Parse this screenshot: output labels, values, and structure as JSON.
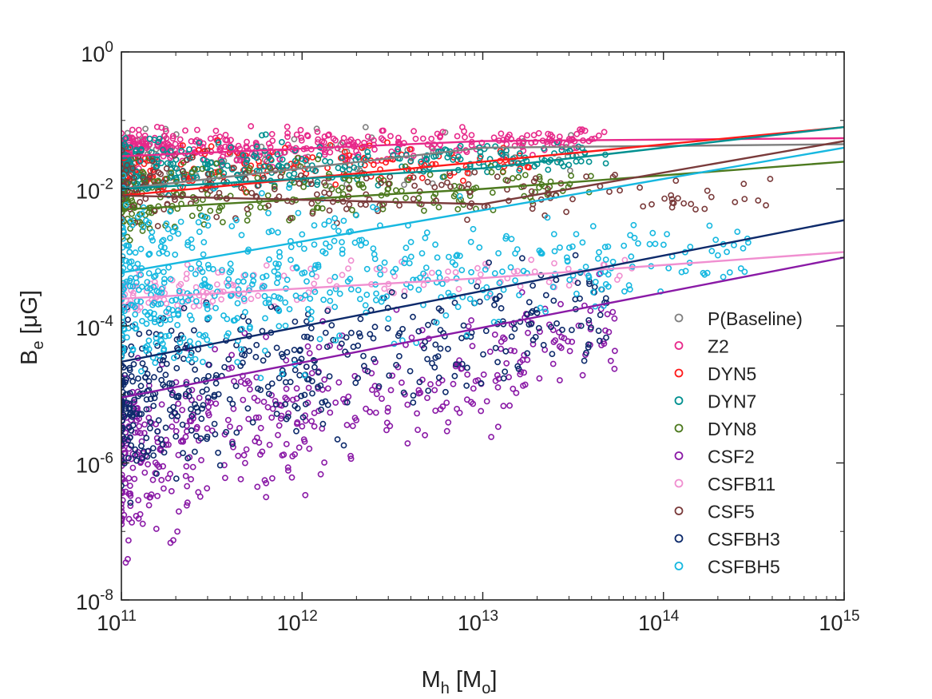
{
  "chart_data": {
    "type": "scatter",
    "title": "",
    "xlabel": {
      "main": "M",
      "sub": "h",
      "unit_open": " [M",
      "unit_sub": "o",
      "unit_close": "]"
    },
    "ylabel": {
      "main": "B",
      "sub": "e",
      "unit": " [μG]"
    },
    "x_scale": "log",
    "y_scale": "log",
    "xlim": [
      100000000000.0,
      1000000000000000.0
    ],
    "ylim": [
      1e-08,
      1
    ],
    "x_ticks": [
      {
        "value": 100000000000.0,
        "base": "10",
        "exp": "11"
      },
      {
        "value": 1000000000000.0,
        "base": "10",
        "exp": "12"
      },
      {
        "value": 10000000000000.0,
        "base": "10",
        "exp": "13"
      },
      {
        "value": 100000000000000.0,
        "base": "10",
        "exp": "14"
      },
      {
        "value": 1000000000000000.0,
        "base": "10",
        "exp": "15"
      }
    ],
    "y_ticks": [
      {
        "value": 1e-08,
        "base": "10",
        "exp": "-8"
      },
      {
        "value": 1e-06,
        "base": "10",
        "exp": "-6"
      },
      {
        "value": 0.0001,
        "base": "10",
        "exp": "-4"
      },
      {
        "value": 0.01,
        "base": "10",
        "exp": "-2"
      },
      {
        "value": 1,
        "base": "10",
        "exp": "0"
      }
    ],
    "grid": false,
    "legend_position": "bottom-right",
    "marker": "open-circle",
    "series": [
      {
        "name": "P(Baseline)",
        "color": "#808080",
        "cloud": {
          "xmin": 100000000000.0,
          "xmax": 40000000000000.0,
          "y_lo": [
            0.005,
            0.01
          ],
          "y_hi": [
            0.13,
            0.1
          ],
          "count": 110
        },
        "fit": {
          "x": [
            100000000000.0,
            10000000000000.0,
            1000000000000000.0
          ],
          "y": [
            0.01,
            0.04,
            0.045
          ]
        }
      },
      {
        "name": "Z2",
        "color": "#e7298a",
        "cloud": {
          "xmin": 100000000000.0,
          "xmax": 50000000000000.0,
          "y_lo": [
            0.015,
            0.03
          ],
          "y_hi": [
            0.1,
            0.09
          ],
          "count": 360
        },
        "fit": {
          "x": [
            100000000000.0,
            10000000000000.0,
            1000000000000000.0
          ],
          "y": [
            0.03,
            0.05,
            0.055
          ]
        }
      },
      {
        "name": "DYN5",
        "color": "#ff1a1a",
        "cloud": {
          "xmin": 100000000000.0,
          "xmax": 20000000000000.0,
          "y_lo": [
            0.005,
            0.012
          ],
          "y_hi": [
            0.06,
            0.06
          ],
          "count": 160
        },
        "fit": {
          "x": [
            100000000000.0,
            10000000000000.0,
            1000000000000000.0
          ],
          "y": [
            0.008,
            0.025,
            0.08
          ]
        }
      },
      {
        "name": "DYN7",
        "color": "#009090",
        "cloud": {
          "xmin": 100000000000.0,
          "xmax": 50000000000000.0,
          "y_lo": [
            0.004,
            0.015
          ],
          "y_hi": [
            0.08,
            0.06
          ],
          "count": 300
        },
        "fit": {
          "x": [
            100000000000.0,
            10000000000000.0,
            1000000000000000.0
          ],
          "y": [
            0.01,
            0.02,
            0.08
          ]
        }
      },
      {
        "name": "DYN8",
        "color": "#4d7a1f",
        "cloud": {
          "xmin": 100000000000.0,
          "xmax": 40000000000000.0,
          "y_lo": [
            0.001,
            0.005
          ],
          "y_hi": [
            0.05,
            0.03
          ],
          "count": 230
        },
        "fit": {
          "x": [
            100000000000.0,
            10000000000000.0,
            1000000000000000.0
          ],
          "y": [
            0.005,
            0.01,
            0.025
          ]
        }
      },
      {
        "name": "CSF2",
        "color": "#8a1aa6",
        "cloud": {
          "xmin": 100000000000.0,
          "xmax": 60000000000000.0,
          "y_lo": [
            1e-08,
            1e-05
          ],
          "y_hi": [
            0.0001,
            0.001
          ],
          "count": 460
        },
        "fit": {
          "x": [
            100000000000.0,
            1000000000000000.0
          ],
          "y": [
            9e-06,
            0.001
          ]
        }
      },
      {
        "name": "CSFB11",
        "color": "#f08fd0",
        "cloud": {
          "xmin": 100000000000.0,
          "xmax": 80000000000000.0,
          "y_lo": [
            0.0001,
            0.0003
          ],
          "y_hi": [
            0.001,
            0.0015
          ],
          "count": 150
        },
        "fit": {
          "x": [
            100000000000.0,
            10000000000000.0,
            1000000000000000.0
          ],
          "y": [
            0.00025,
            0.0005,
            0.0012
          ]
        }
      },
      {
        "name": "CSF5",
        "color": "#7a3b3b",
        "cloud": {
          "xmin": 100000000000.0,
          "xmax": 400000000000000.0,
          "y_lo": [
            0.002,
            0.003
          ],
          "y_hi": [
            0.05,
            0.02
          ],
          "count": 190
        },
        "fit": {
          "x": [
            100000000000.0,
            10000000000000.0,
            1000000000000000.0
          ],
          "y": [
            0.008,
            0.006,
            0.05
          ]
        }
      },
      {
        "name": "CSFBH3",
        "color": "#0d2a6b",
        "cloud": {
          "xmin": 100000000000.0,
          "xmax": 50000000000000.0,
          "y_lo": [
            1e-07,
            2e-05
          ],
          "y_hi": [
            0.0005,
            0.002
          ],
          "count": 460
        },
        "fit": {
          "x": [
            100000000000.0,
            1000000000000000.0
          ],
          "y": [
            3e-05,
            0.0035
          ]
        }
      },
      {
        "name": "CSFBH5",
        "color": "#17b8e0",
        "cloud": {
          "xmin": 100000000000.0,
          "xmax": 300000000000000.0,
          "y_lo": [
            3e-06,
            0.0003
          ],
          "y_hi": [
            0.03,
            0.005
          ],
          "count": 560
        },
        "fit": {
          "x": [
            100000000000.0,
            1000000000000000.0
          ],
          "y": [
            0.0006,
            0.04
          ]
        }
      }
    ]
  }
}
